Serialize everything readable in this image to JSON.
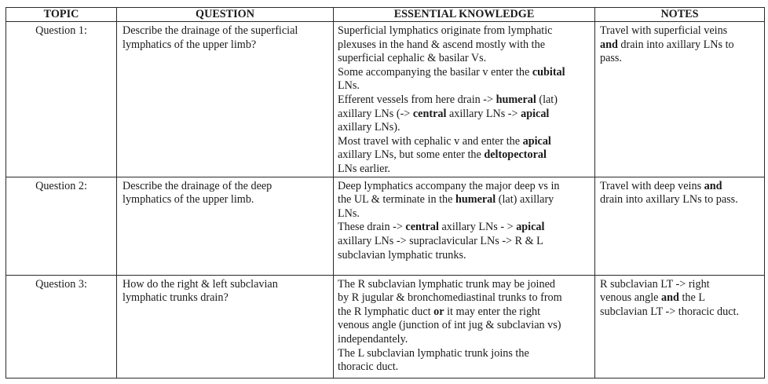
{
  "headers": {
    "topic": "TOPIC",
    "question": "QUESTION",
    "knowledge": "ESSENTIAL KNOWLEDGE",
    "notes": "NOTES"
  },
  "rows": [
    {
      "topic": "Question 1:",
      "question": [
        "Describe the drainage of the superficial",
        "lymphatics of the upper limb?"
      ],
      "knowledge": [
        [
          "Superficial lymphatics originate from lymphatic"
        ],
        [
          "plexuses in the hand & ascend mostly with the"
        ],
        [
          "superficial cephalic & basilar Vs."
        ],
        [
          "Some accompanying the basilar v enter the ",
          "b:cubital"
        ],
        [
          "LNs."
        ],
        [
          "Efferent vessels from here drain -> ",
          "b:humeral",
          " (lat)"
        ],
        [
          "axillary LNs (-> ",
          "b:central",
          " axillary LNs -> ",
          "b:apical"
        ],
        [
          "axillary LNs)."
        ],
        [
          "Most travel with cephalic v and enter the ",
          "b:apical"
        ],
        [
          "axillary LNs, but some enter the ",
          "b:deltopectoral"
        ],
        [
          "LNs earlier."
        ]
      ],
      "notes": [
        [
          "Travel with superficial veins"
        ],
        [
          "b:and",
          " drain into axillary LNs to"
        ],
        [
          "pass."
        ]
      ]
    },
    {
      "topic": "Question 2:",
      "question": [
        "Describe the drainage of the deep",
        "lymphatics of the upper limb."
      ],
      "knowledge": [
        [
          "Deep lymphatics accompany the major deep vs in"
        ],
        [
          "the UL & terminate in the ",
          "b:humeral",
          " (lat) axillary"
        ],
        [
          "LNs."
        ],
        [
          "These drain -> ",
          "b:central",
          " axillary LNs - > ",
          "b:apical"
        ],
        [
          "axillary LNs -> supraclavicular LNs -> R & L"
        ],
        [
          "subclavian lymphatic trunks."
        ]
      ],
      "notes": [
        [
          "Travel with deep veins ",
          "b:and"
        ],
        [
          "drain into axillary LNs to pass."
        ]
      ]
    },
    {
      "topic": "Question 3:",
      "question": [
        "How do the right & left subclavian",
        "lymphatic trunks drain?"
      ],
      "knowledge": [
        [
          "The R subclavian lymphatic trunk may be joined"
        ],
        [
          "by R jugular & bronchomediastinal trunks to from"
        ],
        [
          "the R lymphatic duct ",
          "b:or",
          " it may enter the right"
        ],
        [
          "venous angle (junction of int jug & subclavian vs)"
        ],
        [
          "independantely."
        ],
        [
          "The L subclavian lymphatic trunk joins the"
        ],
        [
          "thoracic duct."
        ]
      ],
      "notes": [
        [
          "R subclavian LT -> right"
        ],
        [
          "venous angle ",
          "b:and",
          " the L"
        ],
        [
          "subclavian LT -> thoracic duct."
        ]
      ]
    }
  ]
}
